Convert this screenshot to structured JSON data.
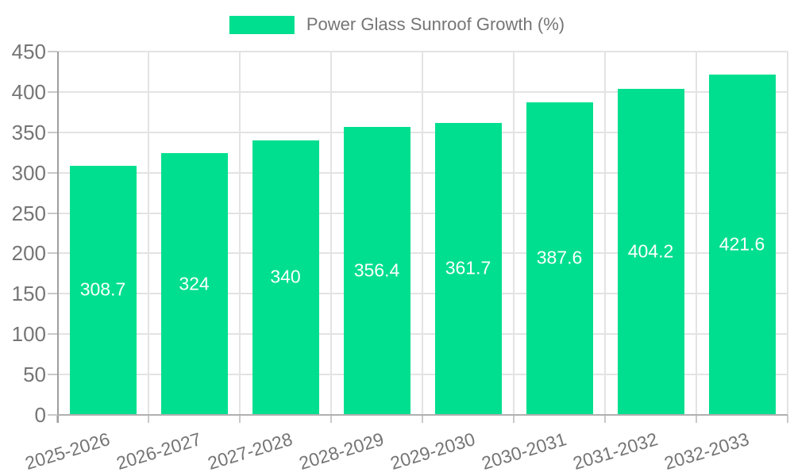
{
  "legend": {
    "label": "Power Glass Sunroof Growth (%)",
    "swatch_color": "#00DF8F"
  },
  "chart_data": {
    "type": "bar",
    "title": "Power Glass Sunroof Growth (%)",
    "series_name": "Power Glass Sunroof Growth (%)",
    "categories": [
      "2025-2026",
      "2026-2027",
      "2027-2028",
      "2028-2029",
      "2029-2030",
      "2030-2031",
      "2031-2032",
      "2032-2033"
    ],
    "values": [
      308.7,
      324,
      340,
      356.4,
      361.7,
      387.6,
      404.2,
      421.6
    ],
    "value_labels": [
      "308.7",
      "324",
      "340",
      "356.4",
      "361.7",
      "387.6",
      "404.2",
      "421.6"
    ],
    "xlabel": "",
    "ylabel": "",
    "ylim": [
      0,
      450
    ],
    "y_ticks": [
      0,
      50,
      100,
      150,
      200,
      250,
      300,
      350,
      400,
      450
    ],
    "grid": "horizontal and vertical gridlines on",
    "legend_position": "top-center",
    "x_label_rotation_deg": -17,
    "colors": {
      "bar": "#00DF8F",
      "value_label": "#ffffff",
      "axis_text": "#757575",
      "gridline": "#e3e3e3",
      "y_axis_line": "#9e9e9e",
      "x_axis_line": "#b0b0b0"
    }
  }
}
